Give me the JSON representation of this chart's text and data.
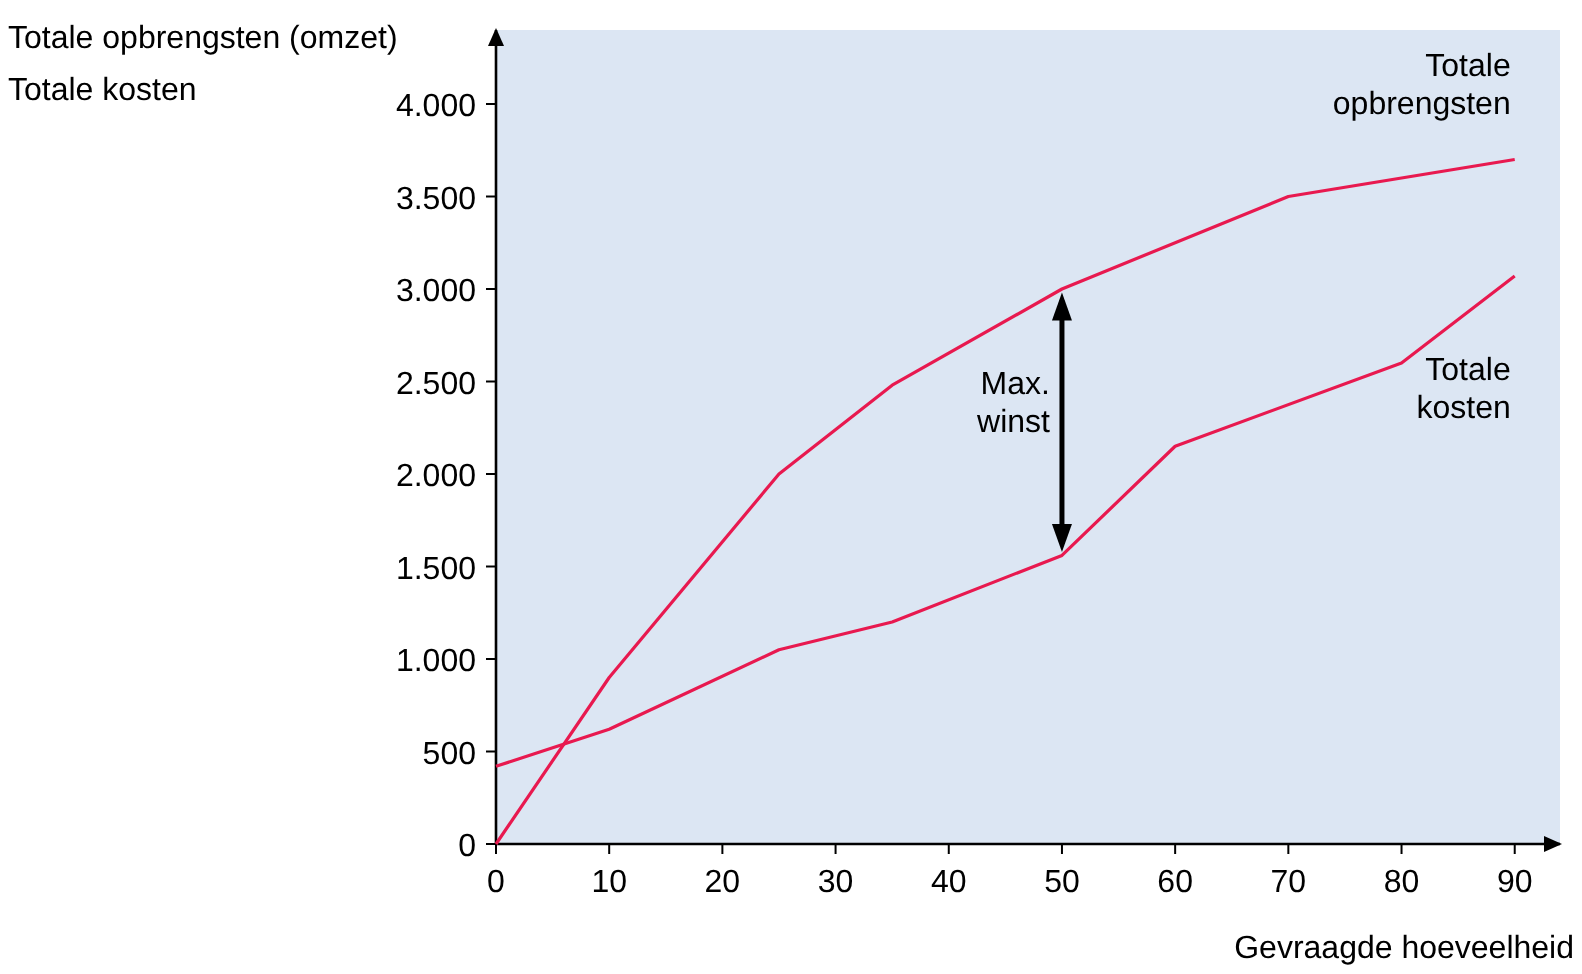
{
  "chart_data": {
    "type": "line",
    "ylabel": "Totale opbrengsten (omzet)\nTotale kosten",
    "xlabel": "Gevraagde hoeveelheid",
    "xlim": [
      0,
      94
    ],
    "ylim": [
      0,
      4400
    ],
    "xticks": [
      0,
      10,
      20,
      30,
      40,
      50,
      60,
      70,
      80,
      90
    ],
    "yticks": [
      0,
      500,
      {
        "value": 1000,
        "label": "1.000"
      },
      {
        "value": 1500,
        "label": "1.500"
      },
      {
        "value": 2000,
        "label": "2.000"
      },
      {
        "value": 2500,
        "label": "2.500"
      },
      {
        "value": 3000,
        "label": "3.000"
      },
      {
        "value": 3500,
        "label": "3.500"
      },
      {
        "value": 4000,
        "label": "4.000"
      }
    ],
    "grid": false,
    "marker": "none",
    "line_style": "solid",
    "series": [
      {
        "name": "Totale opbrengsten",
        "color": "#e8194f",
        "x": [
          0,
          10,
          25,
          35,
          50,
          70,
          90
        ],
        "values": [
          0,
          900,
          2000,
          2480,
          3000,
          3500,
          3700
        ]
      },
      {
        "name": "Totale kosten",
        "color": "#e8194f",
        "x": [
          0,
          10,
          25,
          35,
          50,
          60,
          80,
          90
        ],
        "values": [
          420,
          620,
          1050,
          1200,
          1560,
          2150,
          2600,
          3070
        ]
      }
    ],
    "annotations": [
      "Max. winst"
    ]
  }
}
